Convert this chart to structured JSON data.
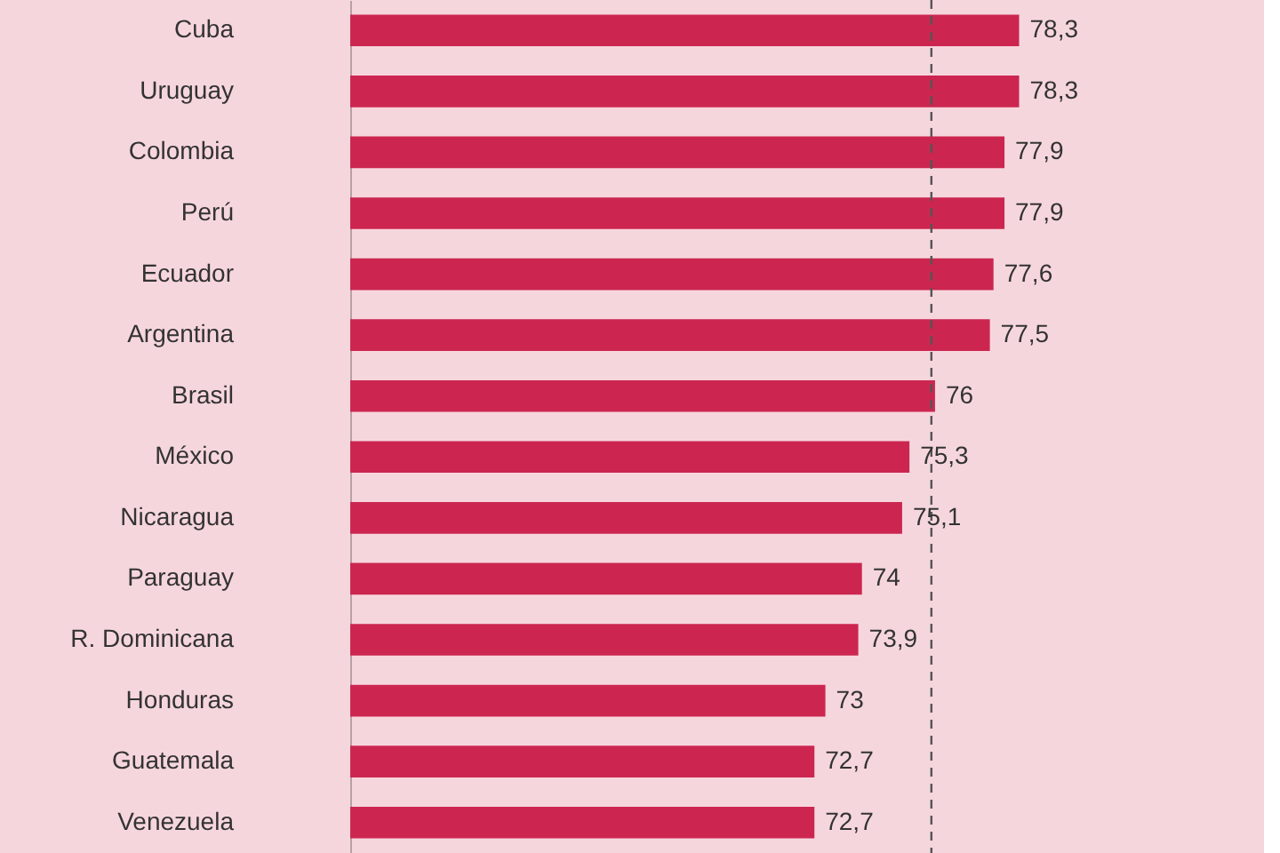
{
  "chart_data": {
    "type": "bar",
    "orientation": "horizontal",
    "categories": [
      "Cuba",
      "Uruguay",
      "Colombia",
      "Perú",
      "Ecuador",
      "Argentina",
      "Brasil",
      "México",
      "Nicaragua",
      "Paraguay",
      "R. Dominicana",
      "Honduras",
      "Guatemala",
      "Venezuela"
    ],
    "values": [
      78.3,
      78.3,
      77.9,
      77.9,
      77.6,
      77.5,
      76,
      75.3,
      75.1,
      74,
      73.9,
      73,
      72.7,
      72.7
    ],
    "value_labels": [
      "78,3",
      "78,3",
      "77,9",
      "77,9",
      "77,6",
      "77,5",
      "76",
      "75,3",
      "75,1",
      "74",
      "73,9",
      "73",
      "72,7",
      "72,7"
    ],
    "color": "#cc2650",
    "xlim": [
      60,
      85
    ],
    "tick_labels": "y",
    "ref_lines": [
      {
        "axis": "x",
        "value": 75.9,
        "color": "#555555",
        "line_style": "dashed"
      }
    ]
  }
}
